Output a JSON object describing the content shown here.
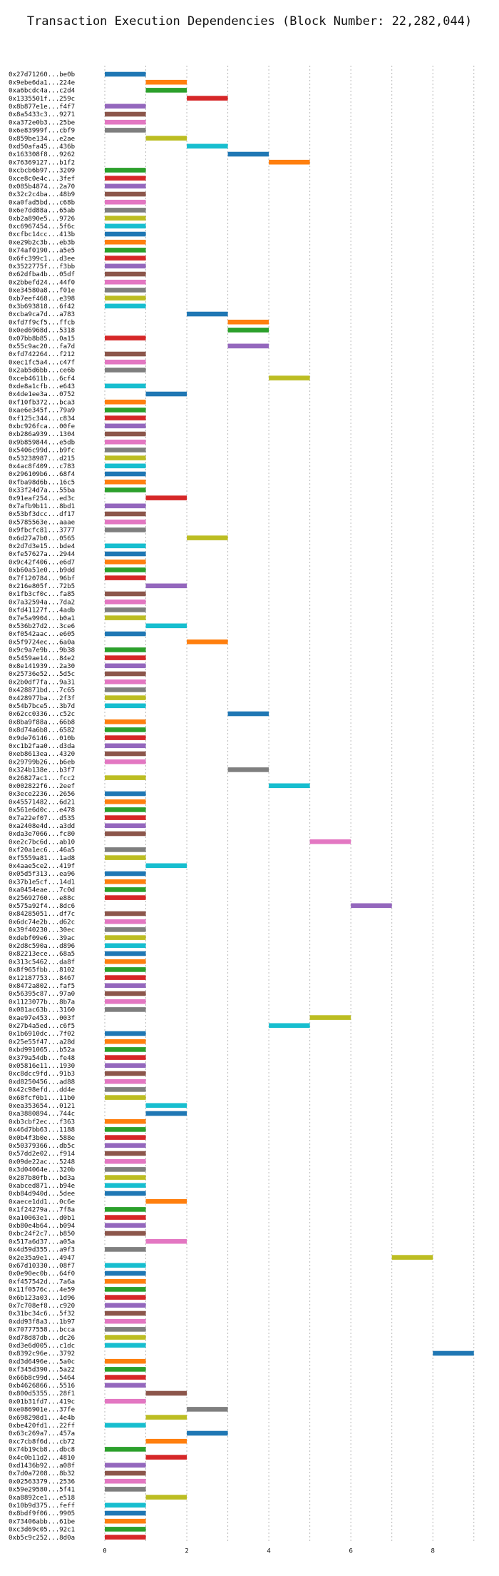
{
  "chart_data": {
    "type": "bar",
    "orientation": "horizontal-gantt",
    "title": "Transaction Execution Dependencies (Block Number: 22,282,044)",
    "xlabel": "",
    "ylabel": "",
    "xlim": [
      0,
      9.3
    ],
    "xticks": [
      0,
      2,
      4,
      6,
      8
    ],
    "grid": "vertical dotted",
    "palette": [
      "#1f77b4",
      "#ff7f0e",
      "#2ca02c",
      "#d62728",
      "#9467bd",
      "#8c564b",
      "#e377c2",
      "#7f7f7f",
      "#bcbd22",
      "#17becf"
    ],
    "labels": [
      "0x27d71260...be0b",
      "0x9ebe6da1...224e",
      "0xa6bcdc4a...c2d4",
      "0x1335501f...259c",
      "0x8b877e1e...f4f7",
      "0x8a5433c3...9271",
      "0xa372e0b3...25be",
      "0x6e83999f...cbf9",
      "0x859be134...e2ae",
      "0xd50afa45...436b",
      "0x163308f8...9262",
      "0x76369127...b1f2",
      "0xcbcb6b97...3209",
      "0xce8c0e4c...3fef",
      "0x085b4874...2a70",
      "0x32c2c4ba...48b9",
      "0xa0fad5bd...c68b",
      "0x6e7dd88a...65ab",
      "0xb2a890e5...9726",
      "0xc6967454...5f6c",
      "0xcfbc14cc...413b",
      "0xe29b2c3b...eb3b",
      "0x74af0190...a5e5",
      "0x6fc399c1...d3ee",
      "0x3522775f...f3bb",
      "0x62dfba4b...05df",
      "0x2bbefd24...44f0",
      "0xe34580a8...f01e",
      "0xb7eef468...e398",
      "0x3b693818...6f42",
      "0xcba9ca7d...a783",
      "0xfd7f9cf5...ffcb",
      "0x0ed6968d...5318",
      "0x07bb8b85...0a15",
      "0x55c9ac20...fa7d",
      "0xfd742264...f212",
      "0xec1fc5a4...c47f",
      "0x2ab5d6bb...ce6b",
      "0xceb4611b...6cf4",
      "0xde8a1cfb...e643",
      "0x4de1ee3a...0752",
      "0xf10fb372...bca3",
      "0xae6e345f...79a9",
      "0xf125c344...c834",
      "0xbc926fca...00fe",
      "0xb286a939...1304",
      "0x9b859844...e5db",
      "0x5406c99d...b9fc",
      "0x53238987...d215",
      "0x4ac8f409...c783",
      "0x296109b6...68f4",
      "0xfba98d6b...16c5",
      "0x33f24d7a...55ba",
      "0x91eaf254...ed3c",
      "0x7afb9b11...8bd1",
      "0x53bf3dcc...df17",
      "0x5785563e...aaae",
      "0x9fbcfc81...3777",
      "0x6d27a7b0...0565",
      "0x2d7d3e15...bde4",
      "0xfe57627a...2944",
      "0x9c42f406...e6d7",
      "0xb60a51e0...b9dd",
      "0x7f120784...96bf",
      "0x216e805f...72b5",
      "0x1fb3cf0c...fa85",
      "0x7a32594a...7da2",
      "0xfd41127f...4adb",
      "0x7e5a9904...b0a1",
      "0x536b27d2...3ce6",
      "0xf0542aac...e605",
      "0x5f9724ec...6a0a",
      "0x9c9a7e9b...9b38",
      "0x5459ae14...84e2",
      "0x8e141939...2a30",
      "0x25736e52...5d5c",
      "0x2b0df7fa...9a31",
      "0x428871bd...7c65",
      "0x428977ba...2f3f",
      "0x54b7bce5...3b7d",
      "0x62cc0336...c52c",
      "0x8ba9f88a...66b8",
      "0x8d74a6b8...6582",
      "0x9de76146...010b",
      "0xc1b2faa0...d3da",
      "0xeb8613ea...4320",
      "0x29799b26...b6eb",
      "0x324b138e...b3f7",
      "0x26827ac1...fcc2",
      "0x002822f6...2eef",
      "0x3ece2236...2656",
      "0x45571482...6d21",
      "0x561e6d0c...e478",
      "0x7a22ef07...d535",
      "0xa2408e4d...a3dd",
      "0xda3e7066...fc80",
      "0xe2c7bc6d...ab10",
      "0xf20a1ec6...46a5",
      "0xf5559a81...1ad8",
      "0x4aae5ce2...419f",
      "0x05d5f313...ea96",
      "0x37b1e5cf...14d1",
      "0xa0454eae...7c0d",
      "0x25692760...e88c",
      "0x575a92f4...8dc6",
      "0x84285051...df7c",
      "0x6dc74e2b...d62c",
      "0x39f40230...30ec",
      "0xdebf09e6...39ac",
      "0x2d8c590a...d896",
      "0x82213ece...68a5",
      "0x313c5462...da8f",
      "0x8f965fbb...8102",
      "0x12187753...8467",
      "0x8472a802...faf5",
      "0x56395c87...97a0",
      "0x1123077b...8b7a",
      "0x081ac63b...3160",
      "0xae97e453...003f",
      "0x27b4a5ed...c6f5",
      "0x1b6910dc...7f02",
      "0x25e55f47...a28d",
      "0xbd991065...b52a",
      "0x379a54db...fe48",
      "0x05816e11...1930",
      "0xc8dcc9fd...91b3",
      "0xd8250456...ad88",
      "0x42c98efd...dd4e",
      "0x68fcf0b1...11b0",
      "0xea353654...0121",
      "0xa3880894...744c",
      "0xb3cbf2ec...f363",
      "0x46d7bb63...1188",
      "0x0b4f3b0e...588e",
      "0x50379366...db5c",
      "0x57dd2e02...f914",
      "0x09de22ac...5248",
      "0x3d04064e...320b",
      "0x287b80fb...bd3a",
      "0xabced871...b94e",
      "0xb84d940d...5dee",
      "0xaece1dd1...0c6e",
      "0x1f24279a...7f8a",
      "0xa10063e1...d0b1",
      "0xb80e4b64...b094",
      "0xbc24f2c7...b850",
      "0x517a6d37...a05a",
      "0x4d59d355...a9f3",
      "0x2e35a9e1...4947",
      "0x67d10330...08f7",
      "0x0e90ec0b...64f0",
      "0xf457542d...7a6a",
      "0x11f0576c...4e59",
      "0x6b123a03...1d96",
      "0x7c708ef8...c920",
      "0x31bc34c6...5f32",
      "0xdd93f8a3...1b97",
      "0x70777558...bcca",
      "0xd78d87db...dc26",
      "0xd3e6d005...c1dc",
      "0x8392c96e...3792",
      "0xd3d6496e...5a0c",
      "0xf345d390...5a22",
      "0x66b8c99d...5464",
      "0xb4626866...5516",
      "0x800d5355...28f1",
      "0x01b31fd7...419c",
      "0xe086901e...37fe",
      "0x698298d1...4e4b",
      "0xbe420fd1...22ff",
      "0x63c269a7...457a",
      "0xc7cb8f6d...cb72",
      "0x74b19cb8...dbc8",
      "0x4c0b11d2...4810",
      "0xd1436b92...a08f",
      "0x7d0a7208...8b32",
      "0x02563379...2536",
      "0x59e29580...5f41",
      "0xa8892ce1...e518",
      "0x10b9d375...feff",
      "0x8bdf9f06...9905",
      "0x73406abb...61be",
      "0xc3d69c05...92c1",
      "0xb5c9c252...8d0a"
    ],
    "starts": [
      0,
      1,
      1,
      2,
      0,
      0,
      0,
      0,
      1,
      2,
      3,
      4,
      0,
      0,
      0,
      0,
      0,
      0,
      0,
      0,
      0,
      0,
      0,
      0,
      0,
      0,
      0,
      0,
      0,
      0,
      2,
      3,
      3,
      0,
      3,
      0,
      0,
      0,
      4,
      0,
      1,
      0,
      0,
      0,
      0,
      0,
      0,
      0,
      0,
      0,
      0,
      0,
      0,
      1,
      0,
      0,
      0,
      0,
      2,
      0,
      0,
      0,
      0,
      0,
      1,
      0,
      0,
      0,
      0,
      1,
      0,
      2,
      0,
      0,
      0,
      0,
      0,
      0,
      0,
      0,
      3,
      0,
      0,
      0,
      0,
      0,
      0,
      3,
      0,
      4,
      0,
      0,
      0,
      0,
      0,
      0,
      5,
      0,
      0,
      1,
      0,
      0,
      0,
      0,
      6,
      0,
      0,
      0,
      0,
      0,
      0,
      0,
      0,
      0,
      0,
      0,
      0,
      0,
      5,
      4,
      0,
      0,
      0,
      0,
      0,
      0,
      0,
      0,
      0,
      1,
      1,
      0,
      0,
      0,
      0,
      0,
      0,
      0,
      0,
      0,
      0,
      1,
      0,
      0,
      0,
      0,
      1,
      0,
      7,
      0,
      0,
      0,
      0,
      0,
      0,
      0,
      0,
      0,
      0,
      0,
      8,
      0,
      0,
      0,
      0,
      1,
      0,
      2,
      1,
      0,
      2,
      1,
      0,
      1,
      0,
      0,
      0,
      0,
      1,
      0,
      0,
      0,
      0,
      0
    ],
    "colors": [
      0,
      1,
      2,
      3,
      4,
      5,
      6,
      7,
      8,
      9,
      0,
      1,
      2,
      3,
      4,
      5,
      6,
      7,
      8,
      9,
      0,
      1,
      2,
      3,
      4,
      5,
      6,
      7,
      8,
      9,
      0,
      1,
      2,
      3,
      4,
      5,
      6,
      7,
      8,
      9,
      0,
      1,
      2,
      3,
      4,
      5,
      6,
      7,
      8,
      9,
      0,
      1,
      2,
      3,
      4,
      5,
      6,
      7,
      8,
      9,
      0,
      1,
      2,
      3,
      4,
      5,
      6,
      7,
      8,
      9,
      0,
      1,
      2,
      3,
      4,
      5,
      6,
      7,
      8,
      9,
      0,
      1,
      2,
      3,
      4,
      5,
      6,
      7,
      8,
      9,
      0,
      1,
      2,
      3,
      4,
      5,
      6,
      7,
      8,
      9,
      0,
      1,
      2,
      3,
      4,
      5,
      6,
      7,
      8,
      9,
      0,
      1,
      2,
      3,
      4,
      5,
      6,
      7,
      8,
      9,
      0,
      1,
      2,
      3,
      4,
      5,
      6,
      7,
      8,
      9,
      0,
      1,
      2,
      3,
      4,
      5,
      6,
      7,
      8,
      9,
      0,
      1,
      2,
      3,
      4,
      5,
      6,
      7,
      8,
      9,
      0,
      1,
      2,
      3,
      4,
      5,
      6,
      7,
      8,
      9,
      0,
      1,
      2,
      3,
      4,
      5,
      6,
      7,
      8,
      9,
      0,
      1,
      2,
      3,
      4,
      5,
      6,
      7,
      8,
      9,
      0,
      1,
      2,
      3,
      4,
      5,
      6,
      7,
      8,
      9,
      0,
      1,
      2,
      3
    ],
    "duration": 1
  }
}
